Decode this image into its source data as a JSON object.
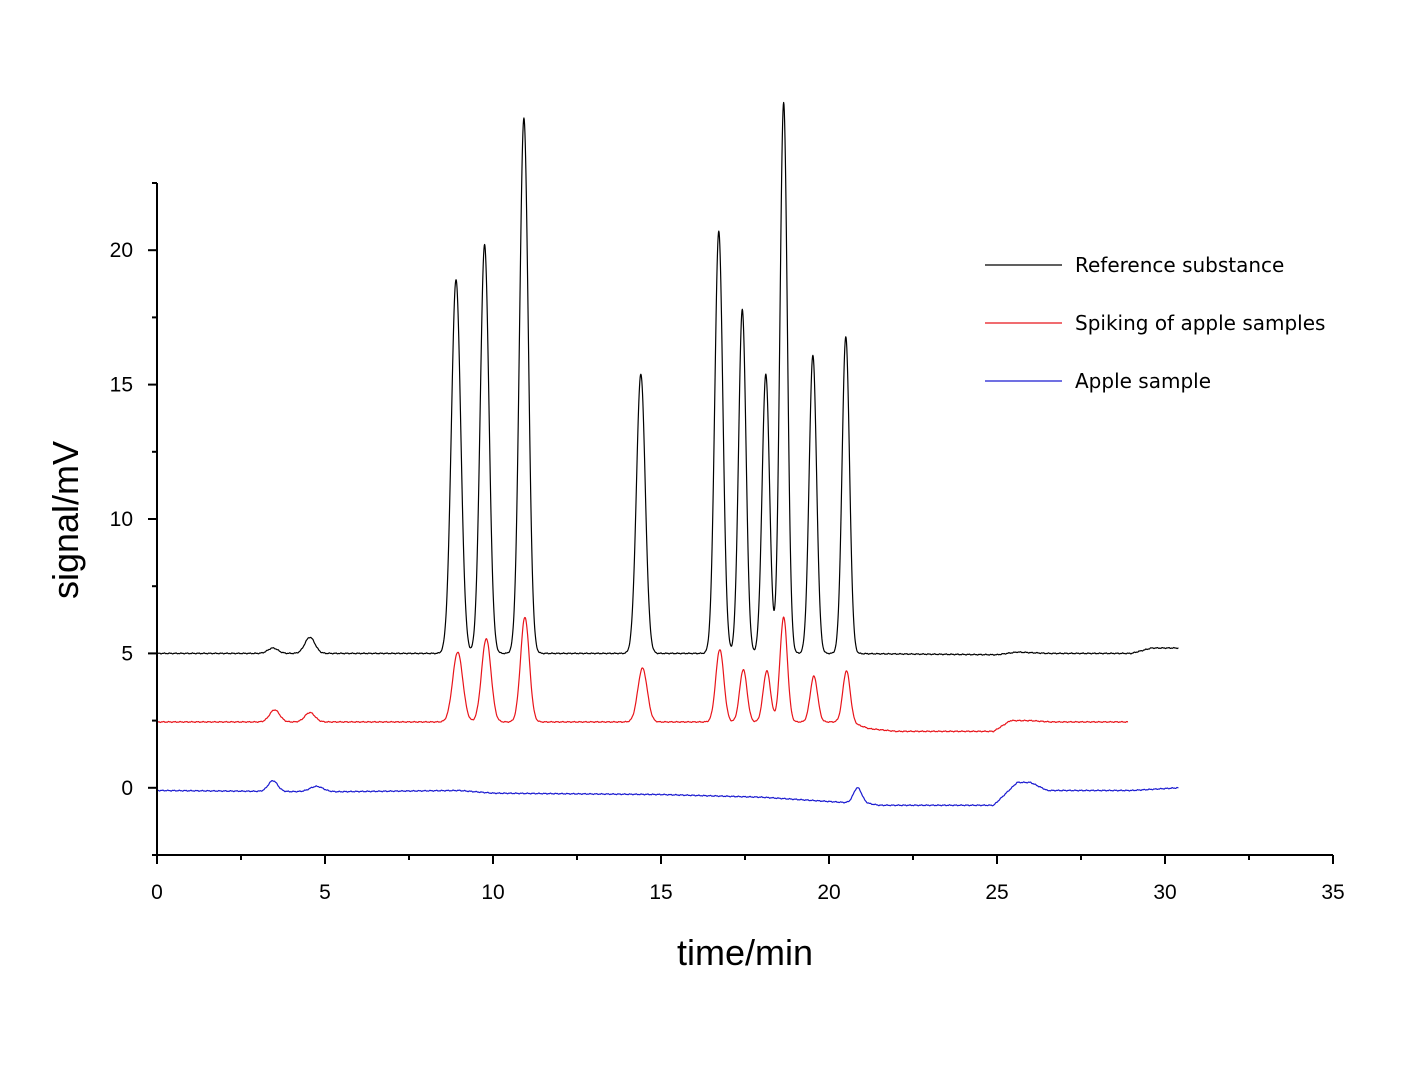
{
  "chart_data": {
    "type": "line",
    "xlabel": "time/min",
    "ylabel": "signal/mV",
    "xlim": [
      0,
      35
    ],
    "ylim": [
      -2.5,
      22.5
    ],
    "x_ticks": [
      0,
      5,
      10,
      15,
      20,
      25,
      30,
      35
    ],
    "x_tick_labels": [
      "0",
      "5",
      "10",
      "15",
      "20",
      "25",
      "30",
      "35"
    ],
    "x_minor_step": 2.5,
    "y_ticks": [
      0,
      5,
      10,
      15,
      20
    ],
    "y_tick_labels": [
      "0",
      "5",
      "10",
      "15",
      "20"
    ],
    "y_minor_step": 2.5,
    "grid": false,
    "legend_position": "top-right",
    "series": [
      {
        "name": "Reference substance",
        "color": "#000000",
        "x_end": 30.4,
        "baseline": [
          [
            0,
            5.0
          ],
          [
            5,
            5.0
          ],
          [
            10,
            5.0
          ],
          [
            20,
            5.0
          ],
          [
            25,
            4.95
          ],
          [
            25.6,
            5.05
          ],
          [
            26.5,
            5.0
          ],
          [
            29,
            5.0
          ],
          [
            29.6,
            5.2
          ],
          [
            30.4,
            5.2
          ]
        ],
        "peaks": [
          {
            "t": 3.45,
            "h": 0.2,
            "w": 0.15
          },
          {
            "t": 4.55,
            "h": 0.6,
            "w": 0.15
          },
          {
            "t": 8.9,
            "h": 13.9,
            "w": 0.14
          },
          {
            "t": 9.75,
            "h": 15.2,
            "w": 0.13
          },
          {
            "t": 10.92,
            "h": 19.9,
            "w": 0.13
          },
          {
            "t": 14.4,
            "h": 10.4,
            "w": 0.13
          },
          {
            "t": 16.72,
            "h": 15.7,
            "w": 0.12
          },
          {
            "t": 17.42,
            "h": 12.8,
            "w": 0.11
          },
          {
            "t": 18.12,
            "h": 10.4,
            "w": 0.11
          },
          {
            "t": 18.65,
            "h": 20.5,
            "w": 0.11
          },
          {
            "t": 19.52,
            "h": 11.1,
            "w": 0.11
          },
          {
            "t": 20.5,
            "h": 11.8,
            "w": 0.11
          }
        ]
      },
      {
        "name": "Spiking of apple samples",
        "color": "#e8141a",
        "x_end": 28.9,
        "baseline": [
          [
            0,
            2.45
          ],
          [
            8,
            2.45
          ],
          [
            20.6,
            2.45
          ],
          [
            21.2,
            2.2
          ],
          [
            22,
            2.1
          ],
          [
            24.9,
            2.1
          ],
          [
            25.4,
            2.5
          ],
          [
            26.0,
            2.5
          ],
          [
            26.6,
            2.45
          ],
          [
            28.9,
            2.45
          ]
        ],
        "peaks": [
          {
            "t": 3.5,
            "h": 0.45,
            "w": 0.15
          },
          {
            "t": 4.55,
            "h": 0.35,
            "w": 0.15
          },
          {
            "t": 8.95,
            "h": 2.6,
            "w": 0.15
          },
          {
            "t": 9.8,
            "h": 3.1,
            "w": 0.14
          },
          {
            "t": 10.95,
            "h": 3.9,
            "w": 0.13
          },
          {
            "t": 14.45,
            "h": 2.0,
            "w": 0.14
          },
          {
            "t": 16.75,
            "h": 2.7,
            "w": 0.12
          },
          {
            "t": 17.45,
            "h": 1.95,
            "w": 0.11
          },
          {
            "t": 18.15,
            "h": 1.9,
            "w": 0.11
          },
          {
            "t": 18.65,
            "h": 3.9,
            "w": 0.11
          },
          {
            "t": 19.55,
            "h": 1.7,
            "w": 0.11
          },
          {
            "t": 20.52,
            "h": 1.9,
            "w": 0.11
          }
        ]
      },
      {
        "name": "Apple sample",
        "color": "#1a1ad0",
        "x_end": 30.4,
        "baseline": [
          [
            0,
            -0.1
          ],
          [
            5,
            -0.15
          ],
          [
            9,
            -0.1
          ],
          [
            10,
            -0.2
          ],
          [
            15,
            -0.25
          ],
          [
            18,
            -0.35
          ],
          [
            20.5,
            -0.55
          ],
          [
            21.0,
            -0.55
          ],
          [
            21.5,
            -0.65
          ],
          [
            24.9,
            -0.65
          ],
          [
            25.6,
            0.2
          ],
          [
            26.0,
            0.2
          ],
          [
            26.5,
            -0.1
          ],
          [
            29,
            -0.1
          ],
          [
            30.4,
            0.0
          ]
        ],
        "peaks": [
          {
            "t": 3.45,
            "h": 0.4,
            "w": 0.14
          },
          {
            "t": 4.75,
            "h": 0.2,
            "w": 0.2
          },
          {
            "t": 20.85,
            "h": 0.55,
            "w": 0.12
          }
        ]
      }
    ]
  }
}
